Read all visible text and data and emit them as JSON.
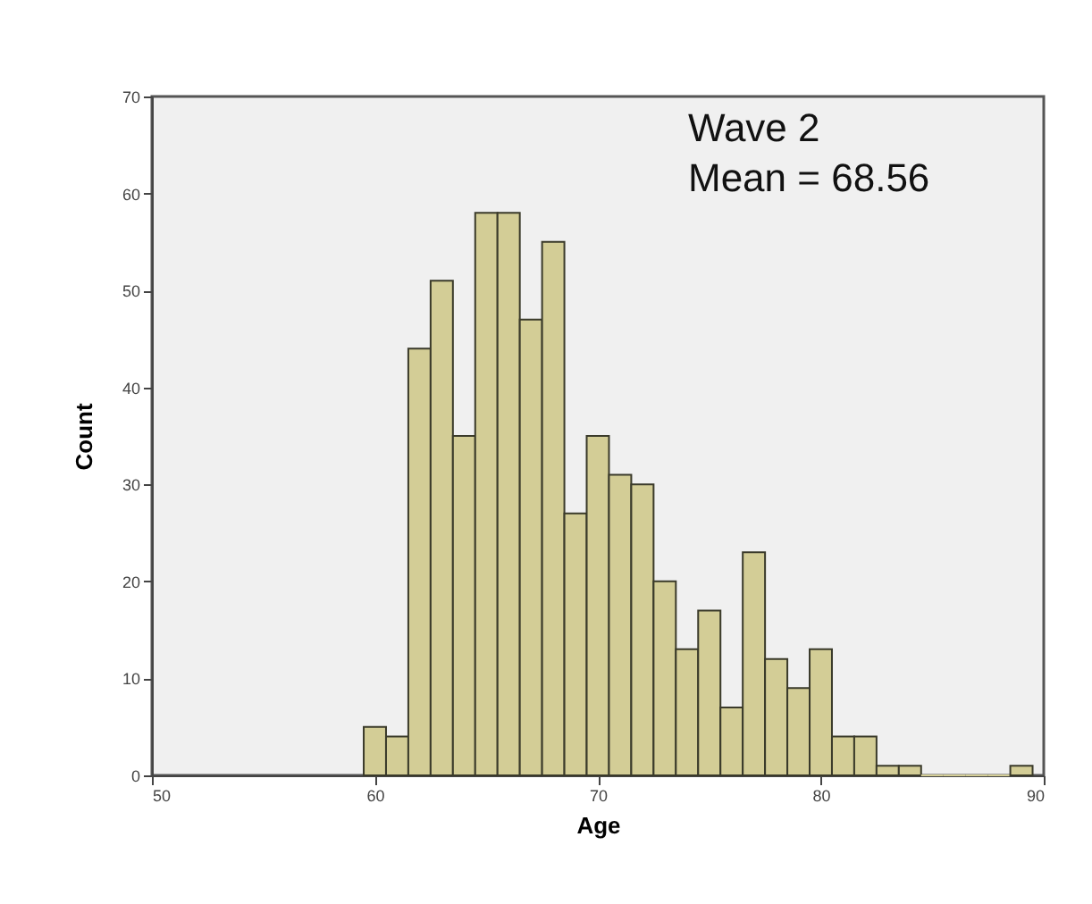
{
  "chart_data": {
    "type": "histogram",
    "xlabel": "Age",
    "ylabel": "Count",
    "annotations": [
      "Wave 2",
      "Mean =  68.56"
    ],
    "bins": [
      59.5,
      60.5,
      61.5,
      62.5,
      63.5,
      64.5,
      65.5,
      66.5,
      67.5,
      68.5,
      69.5,
      70.5,
      71.5,
      72.5,
      73.5,
      74.5,
      75.5,
      76.5,
      77.5,
      78.5,
      79.5,
      80.5,
      81.5,
      82.5,
      83.5,
      84.5,
      85.5,
      86.5,
      87.5,
      88.5,
      89.5
    ],
    "values": [
      5,
      4,
      44,
      51,
      35,
      58,
      58,
      47,
      55,
      27,
      35,
      31,
      30,
      20,
      13,
      17,
      7,
      23,
      12,
      9,
      13,
      4,
      4,
      1,
      1,
      0,
      0,
      0,
      0,
      1
    ],
    "color": "#d3cd96",
    "xlim": [
      50,
      90
    ],
    "xticks": [
      50,
      60,
      70,
      80,
      90
    ],
    "ylim": [
      0,
      70
    ],
    "yticks": [
      0,
      10,
      20,
      30,
      40,
      50,
      60,
      70
    ],
    "grid": false
  }
}
